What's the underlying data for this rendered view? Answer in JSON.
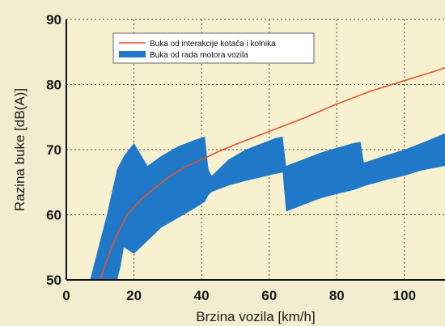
{
  "chart_data": {
    "type": "area",
    "xlabel": "Brzina vozila [km/h]",
    "ylabel": "Razina buke  [dB(A)]",
    "xlim": [
      0,
      112
    ],
    "ylim": [
      50,
      90
    ],
    "x_ticks": [
      0,
      20,
      40,
      60,
      80,
      100
    ],
    "y_ticks": [
      50,
      60,
      70,
      80,
      90
    ],
    "grid": true,
    "legend_position": "top-center",
    "series": [
      {
        "name": "Buka od interakcije kotača i kolnika",
        "kind": "line",
        "color": "#e5532a",
        "x": [
          10,
          12,
          15,
          18,
          22,
          26,
          30,
          35,
          40,
          45,
          50,
          55,
          60,
          70,
          80,
          90,
          100,
          110,
          112
        ],
        "y": [
          50,
          53,
          57,
          60,
          62.3,
          64,
          65.7,
          67.3,
          68.5,
          69.7,
          70.8,
          71.8,
          72.8,
          74.8,
          77,
          79,
          80.6,
          82.2,
          82.6
        ]
      },
      {
        "name": "Buka od rada motora vozila",
        "kind": "band",
        "color": "#1f78c8",
        "x": [
          7,
          12,
          15,
          16,
          17,
          20,
          24,
          28,
          33,
          38,
          41,
          42,
          43,
          48,
          53,
          58,
          62,
          64,
          65,
          70,
          75,
          80,
          85,
          87,
          88,
          95,
          100,
          105,
          112
        ],
        "upper": [
          50,
          60,
          67,
          68,
          69,
          71,
          67.5,
          69,
          70.5,
          71.5,
          72,
          67,
          66,
          68.5,
          70,
          71,
          71.8,
          72,
          67.5,
          68.5,
          69.5,
          70.3,
          71,
          71.2,
          68,
          69.2,
          70,
          71,
          72.5
        ],
        "lower": [
          50,
          50,
          50,
          52,
          55,
          54,
          56,
          58,
          59.5,
          61,
          62,
          63,
          63.5,
          64.5,
          65.2,
          65.8,
          66.3,
          66.5,
          60.5,
          61.5,
          62.5,
          63.2,
          63.8,
          64.2,
          64.4,
          65.4,
          66,
          66.8,
          67.5
        ]
      }
    ]
  }
}
